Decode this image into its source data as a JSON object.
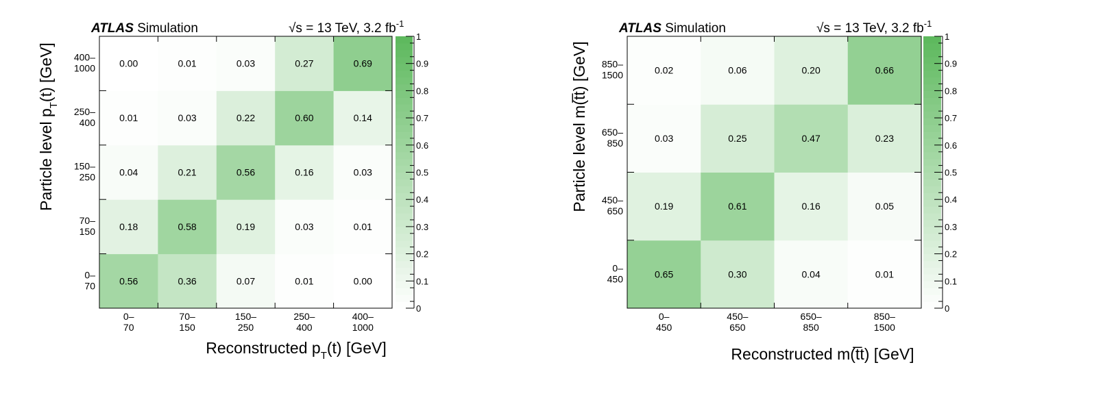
{
  "chart_data": [
    {
      "type": "heatmap",
      "header": {
        "experiment": "ATLAS",
        "tag": "Simulation",
        "energy": "√s = 13 TeV, 3.2 fb",
        "lumi_exp": "-1"
      },
      "xlabel": {
        "main": "Reconstructed p",
        "sub": "T",
        "tail": "(t) [GeV]"
      },
      "ylabel": {
        "main": "Particle level p",
        "sub": "T",
        "tail": "(t) [GeV]"
      },
      "x_bins": [
        [
          "0–",
          "70"
        ],
        [
          "70–",
          "150"
        ],
        [
          "150–",
          "250"
        ],
        [
          "250–",
          "400"
        ],
        [
          "400–",
          "1000"
        ]
      ],
      "y_bins": [
        [
          "0–",
          "70"
        ],
        [
          "70–",
          "150"
        ],
        [
          "150–",
          "250"
        ],
        [
          "250–",
          "400"
        ],
        [
          "400–",
          "1000"
        ]
      ],
      "values": [
        [
          0.56,
          0.36,
          0.07,
          0.01,
          0.0
        ],
        [
          0.18,
          0.58,
          0.19,
          0.03,
          0.01
        ],
        [
          0.04,
          0.21,
          0.56,
          0.16,
          0.03
        ],
        [
          0.01,
          0.03,
          0.22,
          0.6,
          0.14
        ],
        [
          0.0,
          0.01,
          0.03,
          0.27,
          0.69
        ]
      ],
      "labels": [
        [
          "0.56",
          "0.36",
          "0.07",
          "0.01",
          "0.00"
        ],
        [
          "0.18",
          "0.58",
          "0.19",
          "0.03",
          "0.01"
        ],
        [
          "0.04",
          "0.21",
          "0.56",
          "0.16",
          "0.03"
        ],
        [
          "0.01",
          "0.03",
          "0.22",
          "0.60",
          "0.14"
        ],
        [
          "0.00",
          "0.01",
          "0.03",
          "0.27",
          "0.69"
        ]
      ],
      "colorbar": {
        "range": [
          0,
          1
        ],
        "ticks": [
          "0",
          "0.1",
          "0.2",
          "0.3",
          "0.4",
          "0.5",
          "0.6",
          "0.7",
          "0.8",
          "0.9",
          "1"
        ]
      },
      "grid": false
    },
    {
      "type": "heatmap",
      "header": {
        "experiment": "ATLAS",
        "tag": "Simulation",
        "energy": "√s = 13 TeV, 3.2 fb",
        "lumi_exp": "-1"
      },
      "xlabel": {
        "main": "Reconstructed m(t̅t) [GeV]",
        "sub": "",
        "tail": ""
      },
      "ylabel": {
        "main": "Particle level m(t̅t) [GeV]",
        "sub": "",
        "tail": ""
      },
      "x_bins": [
        [
          "0–",
          "450"
        ],
        [
          "450–",
          "650"
        ],
        [
          "650–",
          "850"
        ],
        [
          "850–",
          "1500"
        ]
      ],
      "y_bins": [
        [
          "0–",
          "450"
        ],
        [
          "450–",
          "650"
        ],
        [
          "650–",
          "850"
        ],
        [
          "850–",
          "1500"
        ]
      ],
      "values": [
        [
          0.65,
          0.3,
          0.04,
          0.01
        ],
        [
          0.19,
          0.61,
          0.16,
          0.05
        ],
        [
          0.03,
          0.25,
          0.47,
          0.23
        ],
        [
          0.02,
          0.06,
          0.2,
          0.66
        ]
      ],
      "labels": [
        [
          "0.65",
          "0.30",
          "0.04",
          "0.01"
        ],
        [
          "0.19",
          "0.61",
          "0.16",
          "0.05"
        ],
        [
          "0.03",
          "0.25",
          "0.47",
          "0.23"
        ],
        [
          "0.02",
          "0.06",
          "0.20",
          "0.66"
        ]
      ],
      "colorbar": {
        "range": [
          0,
          1
        ],
        "ticks": [
          "0",
          "0.1",
          "0.2",
          "0.3",
          "0.4",
          "0.5",
          "0.6",
          "0.7",
          "0.8",
          "0.9",
          "1"
        ]
      },
      "grid": false
    }
  ],
  "colors": {
    "low": "#ffffff",
    "high": "#5cb85c",
    "frame": "#000000"
  }
}
